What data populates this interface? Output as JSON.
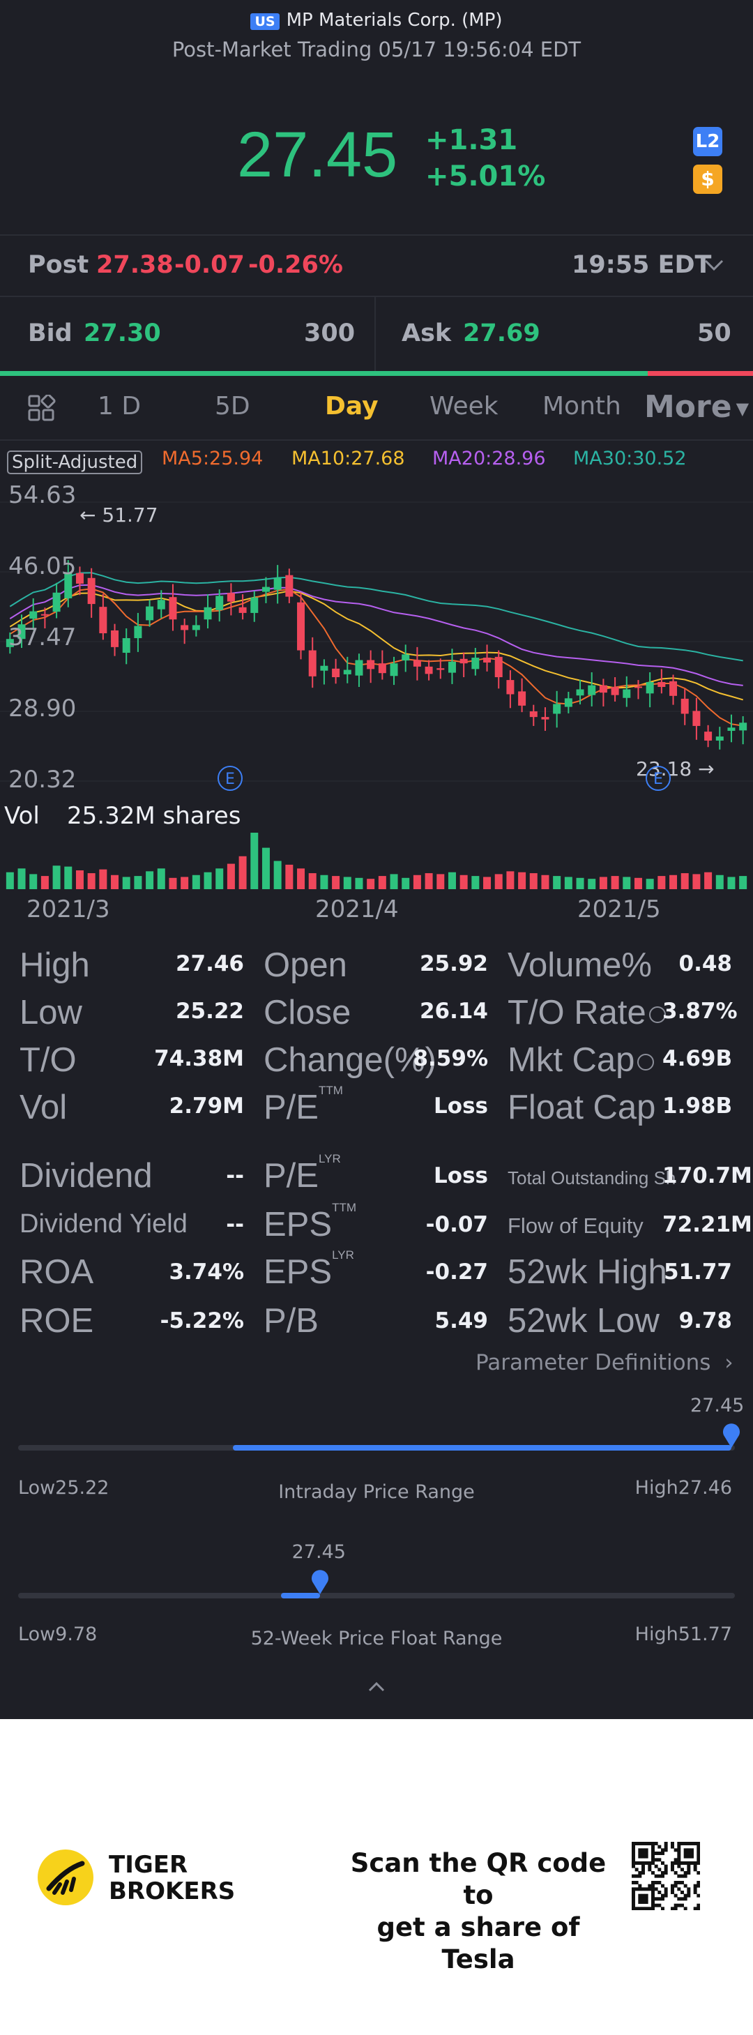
{
  "header": {
    "market_badge": "US",
    "company": "MP Materials Corp. (MP)",
    "session": "Post-Market Trading 05/17 19:56:04 EDT",
    "price": "27.45",
    "change": "+1.31",
    "change_pct": "+5.01%",
    "l2_label": "L2",
    "dollar_label": "$"
  },
  "post": {
    "label": "Post",
    "price": "27.38",
    "change": "-0.07",
    "change_pct": "-0.26%",
    "time": "19:55 EDT"
  },
  "quote": {
    "bid_label": "Bid",
    "bid_price": "27.30",
    "bid_size": "300",
    "ask_label": "Ask",
    "ask_price": "27.69",
    "ask_size": "50",
    "bid_share": 0.86
  },
  "tabs": {
    "t1": "1 D",
    "t2": "5D",
    "t3": "Day",
    "t4": "Week",
    "t5": "Month",
    "t6": "More",
    "active": "Day"
  },
  "chart_legend": {
    "adjust_label": "Split-Adjusted",
    "ma5": "MA5:25.94",
    "ma10": "MA10:27.68",
    "ma20": "MA20:28.96",
    "ma30": "MA30:30.52",
    "ma5_color": "#f06b2e",
    "ma10_color": "#f5c030",
    "ma20_color": "#b760f0",
    "ma30_color": "#2bb3a3"
  },
  "chart_data": {
    "type": "candlestick",
    "y_ticks": [
      "54.63",
      "46.05",
      "37.47",
      "28.90",
      "20.32"
    ],
    "ylim": [
      20.32,
      54.63
    ],
    "x_ticks": [
      "2021/3",
      "2021/4",
      "2021/5"
    ],
    "high_marker": "51.77",
    "low_marker": "23.18",
    "earnings_marker": "E",
    "volume_label": "Vol",
    "volume_value": "25.32M shares",
    "closes": [
      37.8,
      39.6,
      41.2,
      40.8,
      43.5,
      45.9,
      44.6,
      42.1,
      38.5,
      36.8,
      37.9,
      39.4,
      41.8,
      42.6,
      40.2,
      38.9,
      39.5,
      41.7,
      43.1,
      42.4,
      41.0,
      42.9,
      44.2,
      45.3,
      43.0,
      36.4,
      33.2,
      34.5,
      33.1,
      34.0,
      35.2,
      34.1,
      33.6,
      34.8,
      35.9,
      34.4,
      33.5,
      34.0,
      35.0,
      34.8,
      35.5,
      34.9,
      33.1,
      31.0,
      29.6,
      28.2,
      27.9,
      29.8,
      30.5,
      31.6,
      32.1,
      31.2,
      30.9,
      31.6,
      31.8,
      32.5,
      31.9,
      30.8,
      28.6,
      27.1,
      25.3,
      25.8,
      26.9,
      27.5
    ],
    "volumes": [
      18,
      22,
      16,
      14,
      25,
      24,
      20,
      17,
      21,
      15,
      13,
      14,
      19,
      22,
      12,
      13,
      15,
      18,
      22,
      27,
      35,
      60,
      44,
      30,
      26,
      22,
      17,
      15,
      14,
      13,
      12,
      11,
      14,
      16,
      12,
      15,
      17,
      16,
      18,
      15,
      14,
      13,
      16,
      19,
      18,
      17,
      15,
      14,
      13,
      12,
      11,
      13,
      14,
      13,
      12,
      11,
      14,
      15,
      17,
      16,
      18,
      15,
      13,
      14
    ]
  },
  "stats": {
    "high_l": "High",
    "high_v": "27.46",
    "open_l": "Open",
    "open_v": "25.92",
    "volpct_l": "Volume%",
    "volpct_v": "0.48",
    "low_l": "Low",
    "low_v": "25.22",
    "close_l": "Close",
    "close_v": "26.14",
    "to_rate_l": "T/O Rate",
    "to_rate_v": "3.87%",
    "to_l": "T/O",
    "to_v": "74.38M",
    "chg_l": "Change(%)",
    "chg_v": "8.59%",
    "mktcap_l": "Mkt Cap",
    "mktcap_v": "4.69B",
    "vol_l": "Vol",
    "vol_v": "2.79M",
    "pe_ttm_l": "P/E",
    "pe_ttm_sup": "TTM",
    "pe_ttm_v": "Loss",
    "float_l": "Float Cap",
    "float_v": "1.98B",
    "div_l": "Dividend",
    "div_v": "--",
    "pe_lyr_l": "P/E",
    "pe_lyr_sup": "LYR",
    "pe_lyr_v": "Loss",
    "tos_l": "Total Outstanding Sh",
    "tos_v": "170.7M",
    "divy_l": "Dividend Yield",
    "divy_v": "--",
    "eps_ttm_l": "EPS",
    "eps_ttm_sup": "TTM",
    "eps_ttm_v": "-0.07",
    "foe_l": "Flow of Equity",
    "foe_v": "72.21M",
    "roa_l": "ROA",
    "roa_v": "3.74%",
    "eps_lyr_l": "EPS",
    "eps_lyr_sup": "LYR",
    "eps_lyr_v": "-0.27",
    "h52_l": "52wk High",
    "h52_v": "51.77",
    "roe_l": "ROE",
    "roe_v": "-5.22%",
    "pb_l": "P/B",
    "pb_v": "5.49",
    "l52_l": "52wk Low",
    "l52_v": "9.78",
    "param_link": "Parameter Definitions"
  },
  "intraday_range": {
    "current": "27.45",
    "low": "Low25.22",
    "high": "High27.46",
    "title": "Intraday Price Range",
    "low_val": 25.22,
    "high_val": 27.46,
    "price": 27.45
  },
  "week52_range": {
    "current": "27.45",
    "low": "Low9.78",
    "high": "High51.77",
    "title": "52-Week Price Float Range",
    "low_val": 9.78,
    "high_val": 51.77,
    "price": 27.45
  },
  "footer": {
    "brand_line1": "TIGER",
    "brand_line2": "BROKERS",
    "promo_line1": "Scan the QR code to",
    "promo_line2": "get a share of Tesla"
  }
}
